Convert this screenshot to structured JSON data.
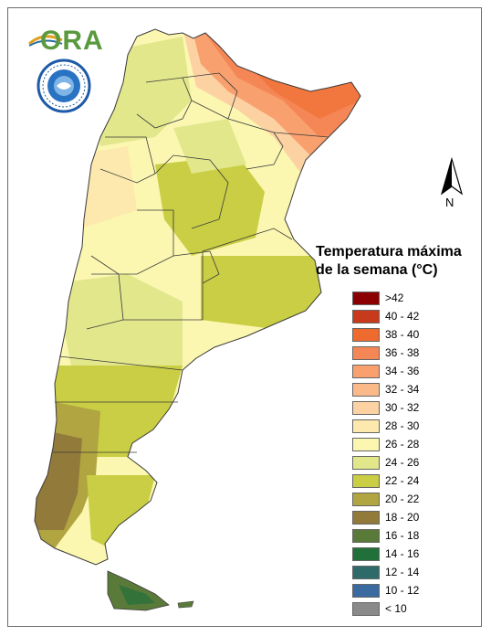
{
  "logo": {
    "text": "ORA",
    "seal": "smn-seal"
  },
  "compass": {
    "label": "N",
    "icon": "north-arrow-icon"
  },
  "legend": {
    "title_line1": "Temperatura máxima",
    "title_line2": "de la semana (°C)",
    "items": [
      {
        "label": ">42",
        "color": "#8b0000"
      },
      {
        "label": "40 - 42",
        "color": "#c83a1c"
      },
      {
        "label": "38 - 40",
        "color": "#ef6a2e"
      },
      {
        "label": "36 - 38",
        "color": "#f58756"
      },
      {
        "label": "34 - 36",
        "color": "#f9a06f"
      },
      {
        "label": "32 - 34",
        "color": "#fbb98a"
      },
      {
        "label": "30 - 32",
        "color": "#fdd2a3"
      },
      {
        "label": "28 - 30",
        "color": "#fde9ad"
      },
      {
        "label": "26 - 28",
        "color": "#fbf7b1"
      },
      {
        "label": "24 - 26",
        "color": "#e2e78c"
      },
      {
        "label": "22 - 24",
        "color": "#c9ce45"
      },
      {
        "label": "20 - 22",
        "color": "#b0a540"
      },
      {
        "label": "18 - 20",
        "color": "#927a3a"
      },
      {
        "label": "16 - 18",
        "color": "#5a7a3a"
      },
      {
        "label": "14 - 16",
        "color": "#227039"
      },
      {
        "label": "12 - 14",
        "color": "#2f6a6a"
      },
      {
        "label": "10 - 12",
        "color": "#3a6aa0"
      },
      {
        "label": "< 10",
        "color": "#8a8a8a"
      }
    ]
  }
}
